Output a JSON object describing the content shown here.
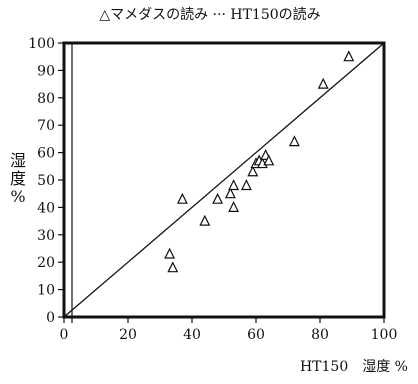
{
  "chart_data": {
    "type": "scatter",
    "title": "△マメダスの読み ··· HT150の読み",
    "xlabel": "HT150　湿度 %",
    "ylabel_chars": [
      "湿",
      "度",
      "%"
    ],
    "xlim": [
      0,
      100
    ],
    "ylim": [
      0,
      100
    ],
    "xticks": [
      "0",
      "20",
      "40",
      "60",
      "80",
      "100"
    ],
    "yticks": [
      "0",
      "10",
      "20",
      "30",
      "40",
      "50",
      "60",
      "70",
      "80",
      "90",
      "100"
    ],
    "reference_line": {
      "x": [
        0,
        100
      ],
      "y": [
        0,
        100
      ]
    },
    "series": [
      {
        "marker": "triangle",
        "points": [
          {
            "x": 33,
            "y": 23
          },
          {
            "x": 34,
            "y": 18
          },
          {
            "x": 37,
            "y": 43
          },
          {
            "x": 44,
            "y": 35
          },
          {
            "x": 48,
            "y": 43
          },
          {
            "x": 52,
            "y": 45
          },
          {
            "x": 53,
            "y": 40
          },
          {
            "x": 53,
            "y": 48
          },
          {
            "x": 57,
            "y": 48
          },
          {
            "x": 59,
            "y": 53
          },
          {
            "x": 60,
            "y": 56
          },
          {
            "x": 61,
            "y": 57
          },
          {
            "x": 62,
            "y": 56
          },
          {
            "x": 63,
            "y": 59
          },
          {
            "x": 64,
            "y": 57
          },
          {
            "x": 72,
            "y": 64
          },
          {
            "x": 81,
            "y": 85
          },
          {
            "x": 89,
            "y": 95
          }
        ]
      }
    ],
    "grid": false
  }
}
